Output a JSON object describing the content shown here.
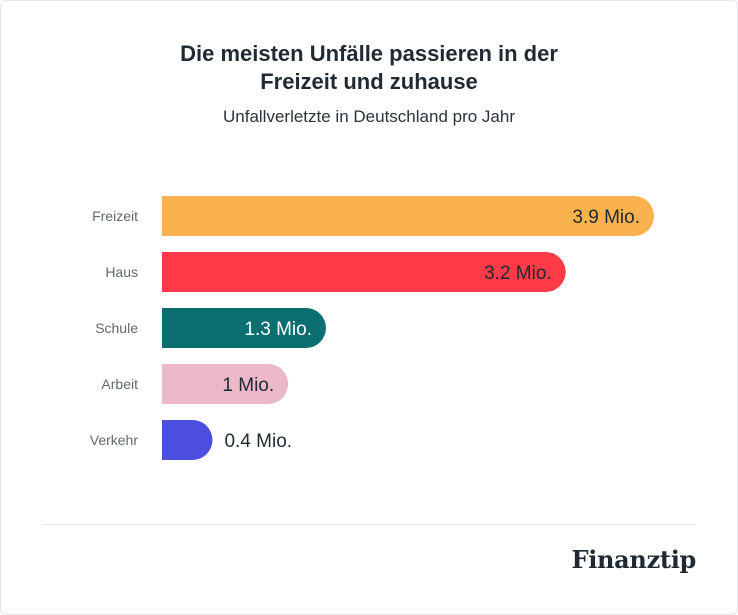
{
  "chart_data": {
    "type": "bar",
    "orientation": "horizontal",
    "title_lines": [
      "Die meisten Unfälle passieren in der",
      "Freizeit und zuhause"
    ],
    "subtitle": "Unfallverletzte in Deutschland pro Jahr",
    "categories": [
      "Freizeit",
      "Haus",
      "Schule",
      "Arbeit",
      "Verkehr"
    ],
    "values": [
      3.9,
      3.2,
      1.3,
      1.0,
      0.4
    ],
    "labels": [
      "3.9 Mio.",
      "3.2 Mio.",
      "1.3 Mio.",
      "1 Mio.",
      "0.4 Mio."
    ],
    "colors": [
      "#F9B24E",
      "#FF3B47",
      "#0B6F72",
      "#EBB8C8",
      "#4A4FE0"
    ],
    "label_colors": [
      "#1f2a33",
      "#1f2a33",
      "#ffffff",
      "#1f2a33",
      "#1f2a33"
    ],
    "unit": "Mio.",
    "xlim": [
      0,
      3.9
    ],
    "grid": false,
    "legend": "none"
  },
  "brand": {
    "logo_text": "Finanztip"
  }
}
